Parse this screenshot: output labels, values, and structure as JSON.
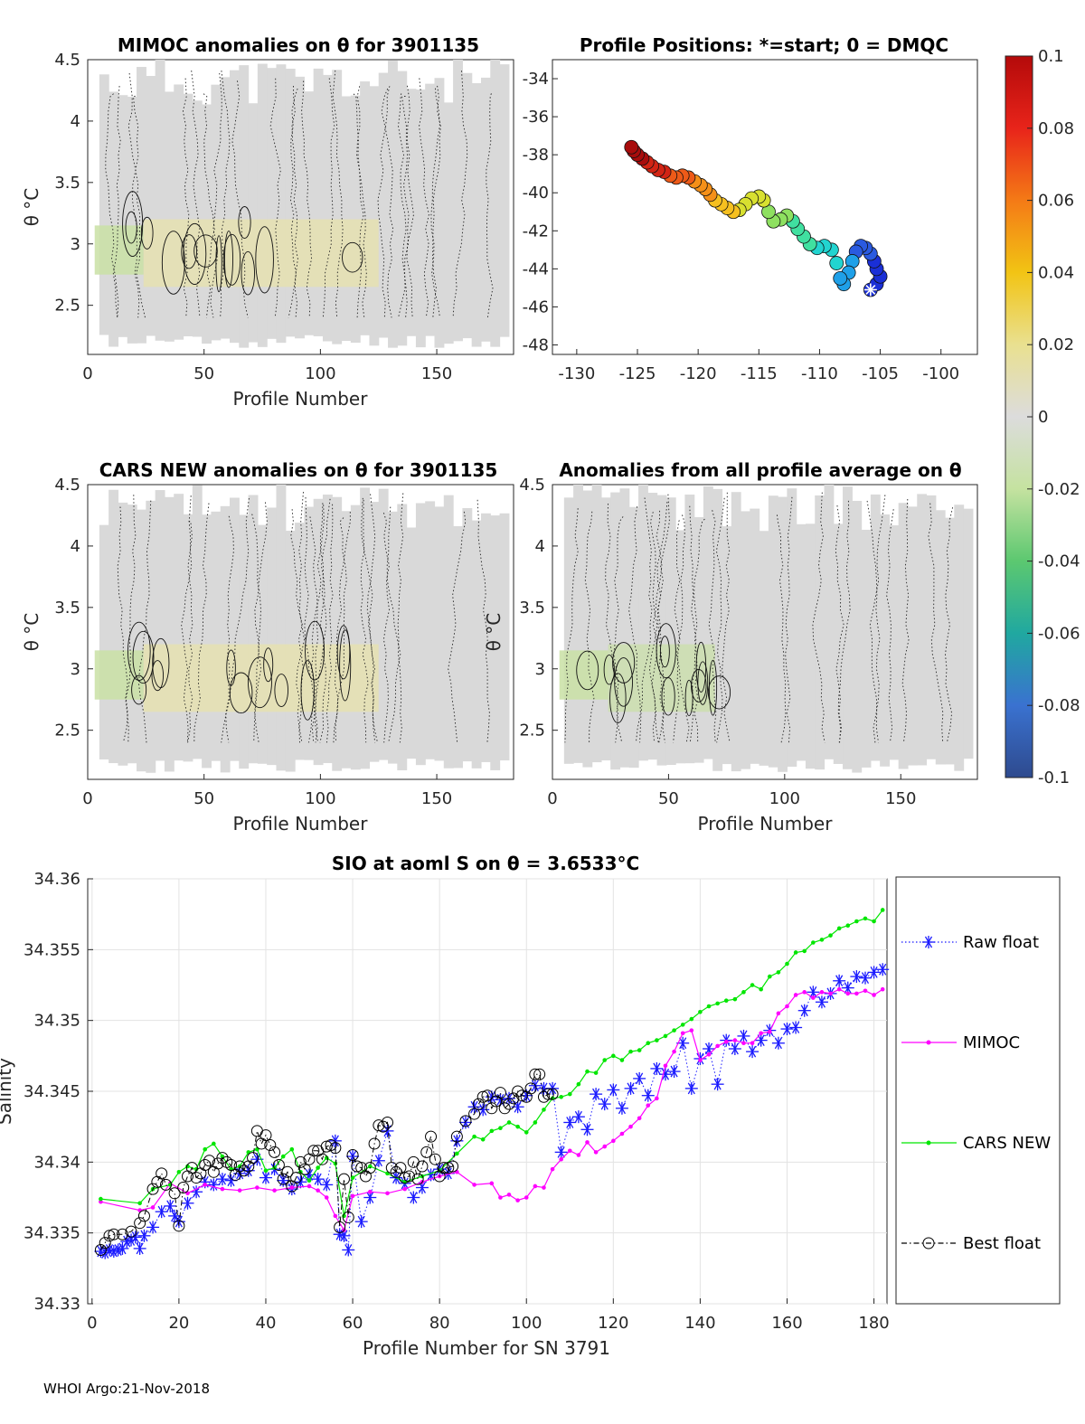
{
  "footer": "WHOI Argo:21-Nov-2018",
  "colors": {
    "raw": "#1a1aff",
    "mimoc": "#ff00ff",
    "cars": "#00e600",
    "best": "#000000",
    "field": "#d9d9d9",
    "field_warm": "#e8e2a8",
    "field_cool": "#c9e0a5"
  },
  "chart_data": [
    {
      "id": "mimoc_theta",
      "type": "heatmap",
      "title": "MIMOC anomalies on θ  for 3901135",
      "xlabel": "Profile Number",
      "ylabel": "θ °C",
      "xlim": [
        0,
        183
      ],
      "ylim": [
        2.1,
        4.5
      ],
      "xticks": [
        "0",
        "50",
        "100",
        "150"
      ],
      "yticks": [
        "2.5",
        "3",
        "3.5",
        "4",
        "4.5"
      ]
    },
    {
      "id": "positions",
      "type": "scatter",
      "title": "Profile Positions: *=start; 0 = DMQC",
      "xlim": [
        -132,
        -97
      ],
      "ylim": [
        -48.5,
        -33
      ],
      "xticks": [
        "-130",
        "-125",
        "-120",
        "-115",
        "-110",
        "-105",
        "-100"
      ],
      "yticks": [
        "-34",
        "-36",
        "-38",
        "-40",
        "-42",
        "-44",
        "-46",
        "-48"
      ],
      "track": [
        [
          -105.8,
          -45.1
        ],
        [
          -105.3,
          -44.8
        ],
        [
          -105.0,
          -44.4
        ],
        [
          -105.3,
          -44.0
        ],
        [
          -105.5,
          -43.6
        ],
        [
          -105.8,
          -43.2
        ],
        [
          -106.2,
          -42.9
        ],
        [
          -106.6,
          -42.8
        ],
        [
          -107.0,
          -43.1
        ],
        [
          -107.3,
          -43.6
        ],
        [
          -107.6,
          -44.2
        ],
        [
          -108.0,
          -44.8
        ],
        [
          -108.3,
          -44.5
        ],
        [
          -108.6,
          -43.7
        ],
        [
          -109.0,
          -43.0
        ],
        [
          -109.6,
          -42.8
        ],
        [
          -110.2,
          -42.9
        ],
        [
          -110.8,
          -42.7
        ],
        [
          -111.3,
          -42.3
        ],
        [
          -111.8,
          -41.9
        ],
        [
          -112.2,
          -41.5
        ],
        [
          -112.7,
          -41.2
        ],
        [
          -113.2,
          -41.4
        ],
        [
          -113.8,
          -41.5
        ],
        [
          -114.2,
          -41.0
        ],
        [
          -114.6,
          -40.4
        ],
        [
          -115.0,
          -40.2
        ],
        [
          -115.6,
          -40.3
        ],
        [
          -116.1,
          -40.6
        ],
        [
          -116.6,
          -40.9
        ],
        [
          -117.1,
          -41.0
        ],
        [
          -117.6,
          -40.8
        ],
        [
          -118.1,
          -40.6
        ],
        [
          -118.6,
          -40.4
        ],
        [
          -119.0,
          -40.1
        ],
        [
          -119.4,
          -39.8
        ],
        [
          -119.8,
          -39.6
        ],
        [
          -120.3,
          -39.4
        ],
        [
          -120.8,
          -39.2
        ],
        [
          -121.3,
          -39.1
        ],
        [
          -121.8,
          -39.2
        ],
        [
          -122.3,
          -39.1
        ],
        [
          -122.8,
          -38.9
        ],
        [
          -123.3,
          -38.8
        ],
        [
          -123.8,
          -38.6
        ],
        [
          -124.2,
          -38.4
        ],
        [
          -124.6,
          -38.2
        ],
        [
          -125.0,
          -38.0
        ],
        [
          -125.3,
          -37.8
        ],
        [
          -125.5,
          -37.6
        ]
      ],
      "start": [
        -105.8,
        -45.1
      ]
    },
    {
      "id": "colorbar",
      "type": "heatmap",
      "clim": [
        -0.1,
        0.1
      ],
      "ticks": [
        "0.1",
        "0.08",
        "0.06",
        "0.04",
        "0.02",
        "0",
        "-0.02",
        "-0.04",
        "-0.06",
        "-0.08",
        "-0.1"
      ]
    },
    {
      "id": "cars_theta",
      "type": "heatmap",
      "title": "CARS NEW anomalies on θ for 3901135",
      "xlabel": "Profile Number",
      "ylabel": "θ °C",
      "xlim": [
        0,
        183
      ],
      "ylim": [
        2.1,
        4.5
      ],
      "xticks": [
        "0",
        "50",
        "100",
        "150"
      ],
      "yticks": [
        "2.5",
        "3",
        "3.5",
        "4",
        "4.5"
      ]
    },
    {
      "id": "avg_theta",
      "type": "heatmap",
      "title": "Anomalies from all profile average on θ",
      "xlabel": "Profile Number",
      "ylabel": "θ °C",
      "xlim": [
        0,
        183
      ],
      "ylim": [
        2.1,
        4.5
      ],
      "xticks": [
        "0",
        "50",
        "100",
        "150"
      ],
      "yticks": [
        "2.5",
        "3",
        "3.5",
        "4",
        "4.5"
      ]
    },
    {
      "id": "salinity",
      "type": "line",
      "title": "SIO at aoml S on θ = 3.6533°C",
      "xlabel": "Profile Number for SN 3791",
      "ylabel": "Salinity",
      "xlim": [
        -1,
        183
      ],
      "ylim": [
        34.33,
        34.36
      ],
      "xticks": [
        "0",
        "20",
        "40",
        "60",
        "80",
        "100",
        "120",
        "140",
        "160",
        "180"
      ],
      "yticks": [
        "34.33",
        "34.335",
        "34.34",
        "34.345",
        "34.35",
        "34.355",
        "34.36"
      ],
      "grid": true,
      "legend": "outside-right",
      "series": [
        {
          "name": "Raw float",
          "key": "raw",
          "x": [
            2,
            3,
            4,
            5,
            6,
            7,
            8,
            9,
            10,
            11,
            12,
            14,
            16,
            18,
            19,
            20,
            22,
            24,
            26,
            28,
            30,
            32,
            34,
            36,
            38,
            40,
            42,
            44,
            46,
            48,
            50,
            52,
            54,
            56,
            57,
            58,
            59,
            60,
            62,
            64,
            66,
            68,
            70,
            72,
            74,
            76,
            78,
            80,
            82,
            84,
            86,
            88,
            90,
            92,
            94,
            96,
            98,
            100,
            102,
            104,
            106,
            108,
            110,
            112,
            114,
            116,
            118,
            120,
            122,
            124,
            126,
            128,
            130,
            132,
            134,
            136,
            138,
            140,
            142,
            144,
            146,
            148,
            150,
            152,
            154,
            156,
            158,
            160,
            162,
            164,
            166,
            168,
            170,
            172,
            174,
            176,
            178,
            180,
            182
          ],
          "y": [
            34.3337,
            34.3336,
            34.3338,
            34.3337,
            34.3338,
            34.3339,
            34.3344,
            34.3345,
            34.3347,
            34.3339,
            34.3348,
            34.3354,
            34.3365,
            34.3369,
            34.3362,
            34.3358,
            34.3371,
            34.3379,
            34.3386,
            34.3384,
            34.3388,
            34.3387,
            34.3392,
            34.3394,
            34.3402,
            34.3389,
            34.3395,
            34.3387,
            34.3381,
            34.3386,
            34.3391,
            34.3388,
            34.3384,
            34.3415,
            34.3349,
            34.3348,
            34.3338,
            34.3404,
            34.3358,
            34.3375,
            34.3401,
            34.3422,
            34.3389,
            34.3385,
            34.3375,
            34.3382,
            34.3391,
            34.3395,
            34.3392,
            34.3415,
            34.3428,
            34.3439,
            34.3437,
            34.3446,
            34.3444,
            34.3445,
            34.3439,
            34.3447,
            34.3454,
            34.3452,
            34.3452,
            34.3407,
            34.3428,
            34.3432,
            34.3423,
            34.3448,
            34.3441,
            34.3451,
            34.3438,
            34.3452,
            34.3459,
            34.3447,
            34.3466,
            34.3462,
            34.3464,
            34.3484,
            34.3452,
            34.3473,
            34.348,
            34.3455,
            34.3486,
            34.348,
            34.3489,
            34.3478,
            34.3486,
            34.3493,
            34.3484,
            34.3494,
            34.3495,
            34.3507,
            34.352,
            34.3513,
            34.3519,
            34.3528,
            34.3523,
            34.3531,
            34.353,
            34.3534,
            34.3536
          ]
        },
        {
          "name": "MIMOC",
          "key": "mimoc",
          "x": [
            2,
            11,
            14,
            18,
            22,
            26,
            30,
            34,
            38,
            42,
            46,
            50,
            52,
            54,
            56,
            58,
            60,
            64,
            68,
            72,
            76,
            80,
            84,
            88,
            92,
            94,
            96,
            98,
            100,
            102,
            104,
            106,
            108,
            110,
            112,
            114,
            116,
            118,
            120,
            122,
            124,
            126,
            128,
            130,
            132,
            134,
            136,
            138,
            140,
            142,
            144,
            146,
            148,
            150,
            152,
            154,
            156,
            158,
            160,
            162,
            164,
            166,
            168,
            170,
            172,
            174,
            176,
            178,
            180,
            182
          ],
          "y": [
            34.3372,
            34.3366,
            34.3368,
            34.3385,
            34.3378,
            34.3384,
            34.3381,
            34.338,
            34.3382,
            34.338,
            34.3382,
            34.3383,
            34.338,
            34.3375,
            34.3362,
            34.3352,
            34.3376,
            34.3379,
            34.3378,
            34.3381,
            34.3386,
            34.339,
            34.3393,
            34.3384,
            34.3385,
            34.3375,
            34.3377,
            34.3373,
            34.3375,
            34.3383,
            34.3382,
            34.3395,
            34.3402,
            34.3408,
            34.3405,
            34.3414,
            34.3407,
            34.3411,
            34.3415,
            34.342,
            34.3425,
            34.3431,
            34.344,
            34.3445,
            34.3468,
            34.3478,
            34.3491,
            34.3493,
            34.3472,
            34.3476,
            34.3482,
            34.3485,
            34.3486,
            34.3484,
            34.3484,
            34.3491,
            34.3492,
            34.3505,
            34.351,
            34.3518,
            34.352,
            34.3516,
            34.352,
            34.3519,
            34.3522,
            34.3519,
            34.3519,
            34.3521,
            34.3518,
            34.3522
          ]
        },
        {
          "name": "CARS NEW",
          "key": "cars",
          "x": [
            2,
            11,
            14,
            18,
            20,
            22,
            24,
            26,
            28,
            30,
            32,
            34,
            36,
            38,
            40,
            42,
            44,
            46,
            48,
            50,
            52,
            54,
            56,
            58,
            60,
            64,
            68,
            72,
            76,
            80,
            84,
            88,
            90,
            92,
            94,
            96,
            98,
            100,
            102,
            104,
            106,
            108,
            110,
            112,
            114,
            116,
            118,
            120,
            122,
            124,
            126,
            128,
            130,
            132,
            134,
            136,
            138,
            140,
            142,
            144,
            146,
            148,
            150,
            152,
            154,
            156,
            158,
            160,
            162,
            164,
            166,
            168,
            170,
            172,
            174,
            176,
            178,
            180,
            182
          ],
          "y": [
            34.3374,
            34.3371,
            34.3381,
            34.3384,
            34.3393,
            34.3397,
            34.3395,
            34.3409,
            34.3413,
            34.3404,
            34.3395,
            34.3397,
            34.3407,
            34.3409,
            34.3394,
            34.3396,
            34.3404,
            34.3409,
            34.3393,
            34.3387,
            34.3396,
            34.3403,
            34.3399,
            34.3362,
            34.3389,
            34.3397,
            34.3392,
            34.3386,
            34.339,
            34.3394,
            34.3406,
            34.3418,
            34.3416,
            34.3422,
            34.3424,
            34.3428,
            34.3425,
            34.3421,
            34.3428,
            34.3437,
            34.3445,
            34.3446,
            34.3448,
            34.3455,
            34.3464,
            34.3463,
            34.3472,
            34.3475,
            34.3472,
            34.3478,
            34.3479,
            34.3484,
            34.3486,
            34.3489,
            34.3493,
            34.3497,
            34.3501,
            34.3506,
            34.351,
            34.3512,
            34.3514,
            34.3515,
            34.352,
            34.3525,
            34.3522,
            34.3531,
            34.3534,
            34.354,
            34.3548,
            34.3549,
            34.3555,
            34.3557,
            34.356,
            34.3565,
            34.3567,
            34.357,
            34.3572,
            34.357,
            34.3578
          ]
        },
        {
          "name": "Best float",
          "key": "best",
          "x": [
            2,
            3,
            4,
            5,
            7,
            9,
            11,
            12,
            14,
            15,
            16,
            17,
            19,
            20,
            21,
            22,
            23,
            24,
            25,
            26,
            27,
            28,
            29,
            30,
            31,
            32,
            33,
            34,
            35,
            36,
            37,
            38,
            39,
            40,
            41,
            42,
            43,
            44,
            45,
            46,
            47,
            48,
            49,
            50,
            51,
            52,
            53,
            54,
            55,
            56,
            57,
            58,
            59,
            60,
            61,
            62,
            63,
            64,
            65,
            66,
            67,
            68,
            69,
            70,
            71,
            72,
            73,
            74,
            75,
            76,
            77,
            78,
            79,
            80,
            81,
            82,
            83,
            84,
            86,
            88,
            89,
            90,
            91,
            92,
            93,
            94,
            95,
            96,
            97,
            98,
            99,
            100,
            101,
            102,
            103,
            104,
            105,
            106
          ],
          "y": [
            34.3338,
            34.3343,
            34.3348,
            34.3349,
            34.3349,
            34.3351,
            34.3357,
            34.3362,
            34.3381,
            34.3386,
            34.3392,
            34.3384,
            34.3378,
            34.3355,
            34.3382,
            34.339,
            34.3396,
            34.3389,
            34.3392,
            34.3398,
            34.3401,
            34.3393,
            34.3399,
            34.3403,
            34.34,
            34.3398,
            34.3391,
            34.3397,
            34.3394,
            34.3397,
            34.3403,
            34.3422,
            34.3413,
            34.3419,
            34.3412,
            34.3407,
            34.3398,
            34.3388,
            34.3393,
            34.3383,
            34.3389,
            34.34,
            34.3395,
            34.3402,
            34.3408,
            34.3408,
            34.3402,
            34.3411,
            34.3412,
            34.341,
            34.3354,
            34.3388,
            34.3361,
            34.3405,
            34.3397,
            34.3396,
            34.339,
            34.3396,
            34.3413,
            34.3426,
            34.3425,
            34.3428,
            34.3396,
            34.3393,
            34.3396,
            34.3389,
            34.339,
            34.34,
            34.3388,
            34.3397,
            34.3407,
            34.3418,
            34.3402,
            34.339,
            34.3396,
            34.3396,
            34.3397,
            34.3418,
            34.3429,
            34.3434,
            34.3441,
            34.3446,
            34.3447,
            34.3438,
            34.3443,
            34.3449,
            34.3438,
            34.3441,
            34.3445,
            34.345,
            34.3447,
            34.3446,
            34.3452,
            34.3462,
            34.3462,
            34.3446,
            34.3448,
            34.3448
          ]
        }
      ]
    }
  ]
}
